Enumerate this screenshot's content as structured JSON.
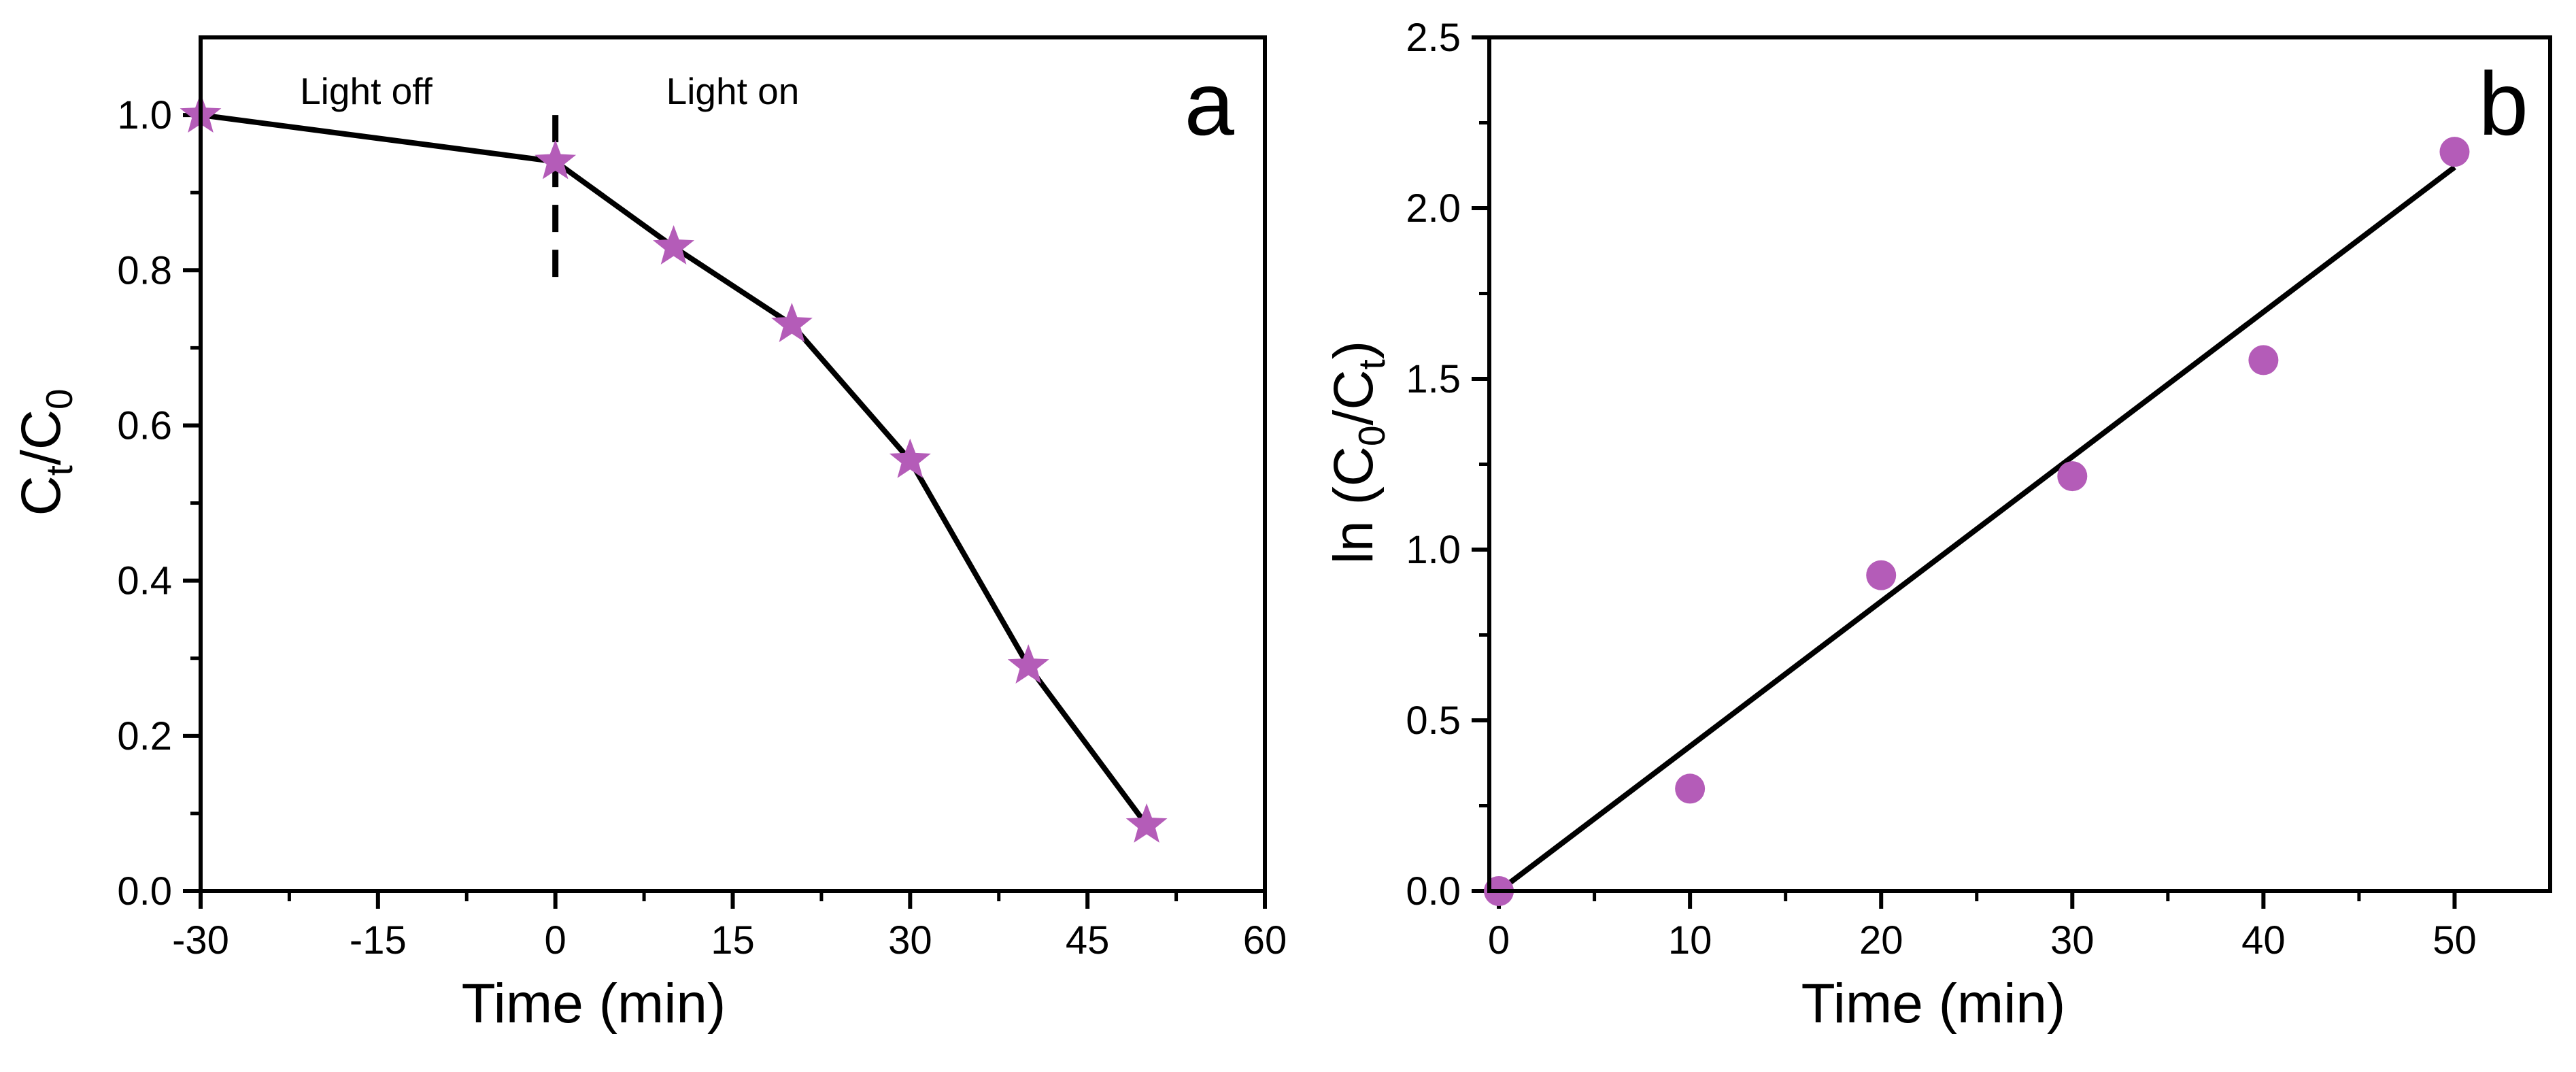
{
  "colors": {
    "marker": "#b45cb8",
    "line": "#000000",
    "axis": "#000000"
  },
  "chart_data": [
    {
      "type": "line",
      "panel_label": "a",
      "marker": "star",
      "x": [
        -30,
        0,
        10,
        20,
        30,
        40,
        50
      ],
      "y": [
        1.0,
        0.94,
        0.83,
        0.73,
        0.555,
        0.29,
        0.085
      ],
      "xlabel": "Time (min)",
      "ylabel": {
        "main": "C",
        "sub1": "t",
        "mid": "/C",
        "sub2": "0"
      },
      "xlim": [
        -30,
        60
      ],
      "ylim": [
        0.0,
        1.1
      ],
      "xticks": [
        -30,
        -15,
        0,
        15,
        30,
        45,
        60
      ],
      "xtick_labels": [
        "-30",
        "-15",
        "0",
        "15",
        "30",
        "45",
        "60"
      ],
      "yticks": [
        0.0,
        0.2,
        0.4,
        0.6,
        0.8,
        1.0
      ],
      "ytick_labels": [
        "0.0",
        "0.2",
        "0.4",
        "0.6",
        "0.8",
        "1.0"
      ],
      "divider": {
        "x": 0,
        "y_from": 0.78,
        "y_to": 1.0,
        "style": "dashed"
      },
      "region_labels": [
        {
          "text": "Light off",
          "x": -16,
          "y": 1.03
        },
        {
          "text": "Light on",
          "x": 15,
          "y": 1.03
        }
      ],
      "grid": false
    },
    {
      "type": "scatter",
      "panel_label": "b",
      "marker": "circle",
      "x": [
        0,
        10,
        20,
        30,
        40,
        50
      ],
      "y": [
        0.0,
        0.3,
        0.925,
        1.215,
        1.555,
        2.165
      ],
      "fit_line": {
        "x": [
          0,
          50
        ],
        "y": [
          0.0,
          2.12
        ]
      },
      "xlabel": "Time (min)",
      "ylabel": {
        "main": "ln (C",
        "sub1": "0",
        "mid": "/C",
        "sub2": "t",
        "end": ")"
      },
      "xlim": [
        -0.5,
        55
      ],
      "ylim": [
        0.0,
        2.5
      ],
      "xticks": [
        0,
        10,
        20,
        30,
        40,
        50
      ],
      "xtick_labels": [
        "0",
        "10",
        "20",
        "30",
        "40",
        "50"
      ],
      "yticks": [
        0.0,
        0.5,
        1.0,
        1.5,
        2.0,
        2.5
      ],
      "ytick_labels": [
        "0.0",
        "0.5",
        "1.0",
        "1.5",
        "2.0",
        "2.5"
      ],
      "grid": false
    }
  ]
}
